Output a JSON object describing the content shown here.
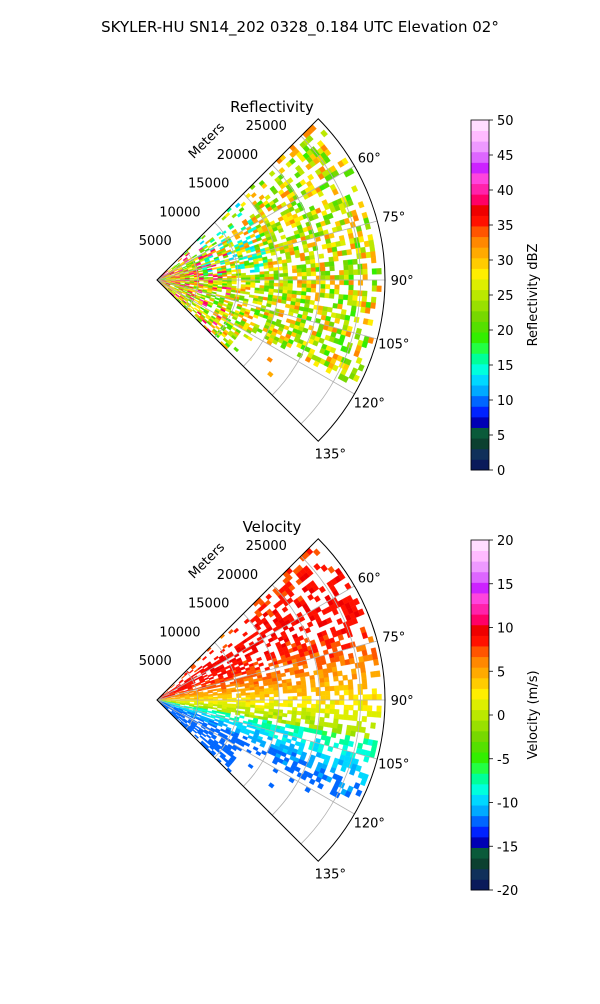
{
  "figure": {
    "suptitle": "SKYLER-HU  SN14_202  0328_0.184 UTC Elevation 02°"
  },
  "chart_data": [
    {
      "type": "heatmap",
      "subtype": "polar-ppi",
      "title": "Reflectivity",
      "range_label": "Meters",
      "range_ticks": [
        5000,
        10000,
        15000,
        20000,
        25000
      ],
      "range_max": 28000,
      "azimuth_ticks": [
        60,
        75,
        90,
        105,
        120,
        135
      ],
      "azimuth_tick_labels": [
        "60°",
        "75°",
        "90°",
        "105°",
        "120°",
        "135°"
      ],
      "azimuth_range": [
        45,
        135
      ],
      "grid": true,
      "colorbar": {
        "label": "Reflectivity dBZ",
        "min": 0,
        "max": 50,
        "ticks": [
          0,
          5,
          10,
          15,
          20,
          25,
          30,
          35,
          40,
          45,
          50
        ],
        "colors": [
          "#0a1a5a",
          "#10305a",
          "#0c4030",
          "#0a5a3a",
          "#0000b4",
          "#0022ff",
          "#0066ff",
          "#00aaff",
          "#00d8ff",
          "#00ffdd",
          "#00ff99",
          "#22ff44",
          "#33ee00",
          "#55e000",
          "#77d800",
          "#99e000",
          "#bbe800",
          "#ddee00",
          "#ffee00",
          "#ffcc00",
          "#ffaa00",
          "#ff8800",
          "#ff5500",
          "#ff1100",
          "#ee0000",
          "#ff0066",
          "#ff22aa",
          "#ff44dd",
          "#cc22ff",
          "#dd66ff",
          "#ee99ff",
          "#ffbbff",
          "#ffddff"
        ]
      },
      "echo_value_range": [
        12,
        40
      ]
    },
    {
      "type": "heatmap",
      "subtype": "polar-ppi",
      "title": "Velocity",
      "range_label": "Meters",
      "range_ticks": [
        5000,
        10000,
        15000,
        20000,
        25000
      ],
      "range_max": 28000,
      "azimuth_ticks": [
        60,
        75,
        90,
        105,
        120,
        135
      ],
      "azimuth_tick_labels": [
        "60°",
        "75°",
        "90°",
        "105°",
        "120°",
        "135°"
      ],
      "azimuth_range": [
        45,
        135
      ],
      "grid": true,
      "colorbar": {
        "label": "Velocity (m/s)",
        "min": -20,
        "max": 20,
        "ticks": [
          -20,
          -15,
          -10,
          -5,
          0,
          5,
          10,
          15,
          20
        ],
        "colors": [
          "#0a1a5a",
          "#10305a",
          "#0c4030",
          "#0a5a3a",
          "#0000b4",
          "#0022ff",
          "#0066ff",
          "#00aaff",
          "#00d8ff",
          "#00ffdd",
          "#00ff99",
          "#22ff44",
          "#33ee00",
          "#55e000",
          "#77d800",
          "#99e000",
          "#bbe800",
          "#ddee00",
          "#ffee00",
          "#ffcc00",
          "#ffaa00",
          "#ff8800",
          "#ff5500",
          "#ff1100",
          "#ee0000",
          "#ff0066",
          "#ff22aa",
          "#ff44dd",
          "#cc22ff",
          "#dd66ff",
          "#ee99ff",
          "#ffbbff",
          "#ffddff"
        ]
      },
      "echo_value_range": [
        -12,
        12
      ]
    }
  ]
}
